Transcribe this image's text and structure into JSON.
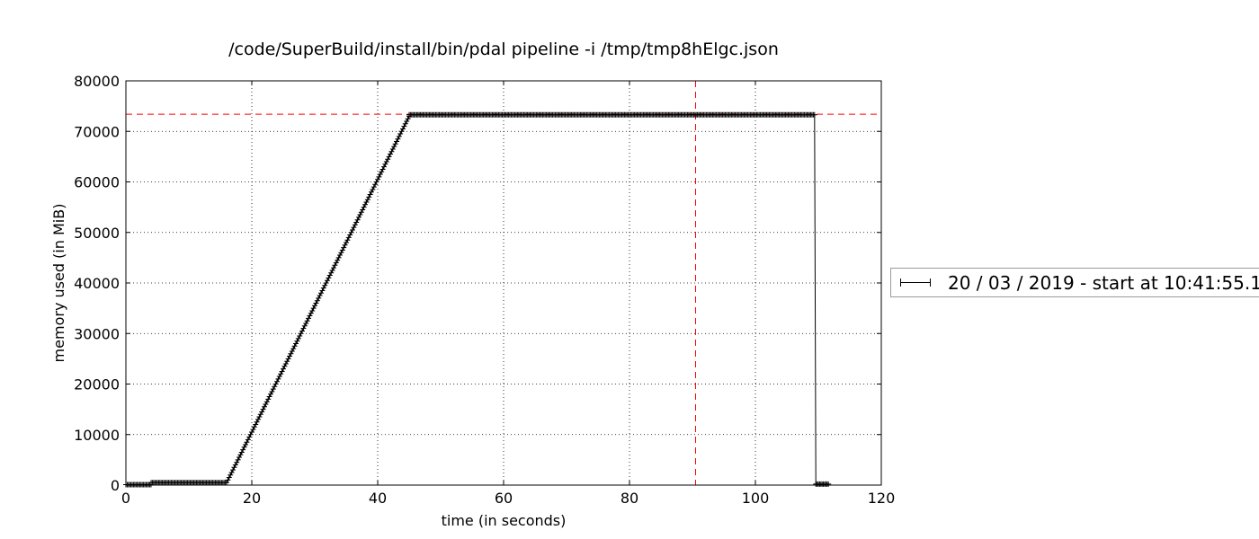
{
  "chart_data": {
    "type": "line",
    "title": "/code/SuperBuild/install/bin/pdal pipeline -i /tmp/tmp8hElgc.json",
    "xlabel": "time (in seconds)",
    "ylabel": "memory used (in MiB)",
    "xlim": [
      0,
      120
    ],
    "ylim": [
      0,
      80000
    ],
    "xticks": [
      0,
      20,
      40,
      60,
      80,
      100,
      120
    ],
    "yticks": [
      0,
      10000,
      20000,
      30000,
      40000,
      50000,
      60000,
      70000,
      80000
    ],
    "grid": true,
    "legend_position": "right-outside",
    "series": [
      {
        "name": "20 / 03 / 2019 - start at 10:41:55.1",
        "color": "#000000",
        "marker": "+",
        "step": 0.2,
        "segments": [
          {
            "from": 0,
            "to": 4,
            "y0": 100,
            "y1": 100
          },
          {
            "from": 4,
            "to": 16,
            "y0": 500,
            "y1": 500
          },
          {
            "from": 16,
            "to": 45,
            "y0": 500,
            "y1": 73000
          },
          {
            "from": 45,
            "to": 109.4,
            "y0": 73300,
            "y1": 73300
          },
          {
            "from": 109.6,
            "to": 111.6,
            "y0": 200,
            "y1": 200
          }
        ]
      }
    ],
    "annotations": [
      {
        "type": "hline",
        "y": 73400,
        "color": "#ff0000",
        "style": "dashed"
      },
      {
        "type": "vline",
        "x": 90.5,
        "color": "#ff0000",
        "style": "dashed"
      }
    ]
  }
}
